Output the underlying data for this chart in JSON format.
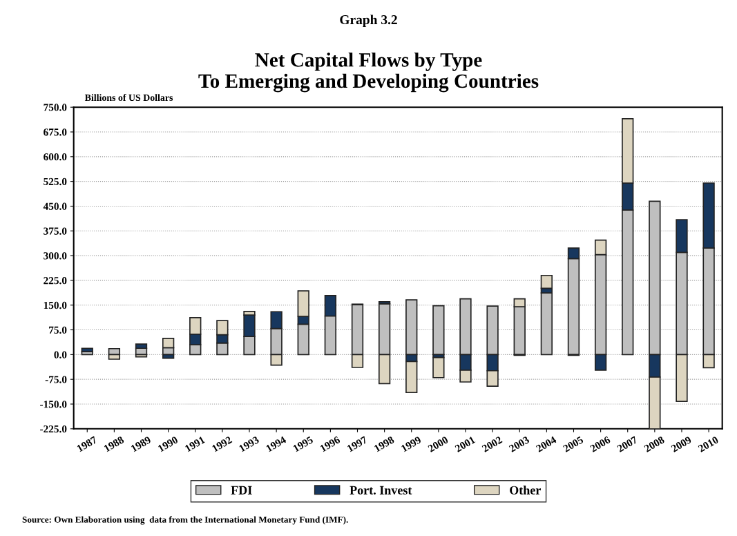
{
  "chart_data": {
    "type": "bar",
    "stacked": true,
    "title": "Graph 3.2",
    "subtitle": "Net Capital Flows by Type\nTo Emerging and Developing Countries",
    "ylabel": "Billions of US Dollars",
    "categories": [
      "1987",
      "1988",
      "1989",
      "1990",
      "1991",
      "1992",
      "1993",
      "1994",
      "1995",
      "1996",
      "1997",
      "1998",
      "1999",
      "2000",
      "2001",
      "2002",
      "2003",
      "2004",
      "2005",
      "2006",
      "2007",
      "2008",
      "2009",
      "2010"
    ],
    "series": [
      {
        "name": "FDI",
        "color": "#bfbfbf",
        "values": [
          9,
          18,
          19,
          21,
          30,
          35,
          55,
          79,
          92,
          117,
          151,
          154,
          166,
          148,
          169,
          147,
          145,
          187,
          291,
          303,
          438,
          465,
          310,
          323
        ]
      },
      {
        "name": "Port. Invest",
        "color": "#17375e",
        "values": [
          10,
          null,
          13,
          -11,
          32,
          25,
          65,
          51,
          24,
          62,
          2,
          6,
          -21,
          -9,
          -47,
          -49,
          -2,
          14,
          32,
          -47,
          82,
          -68,
          99,
          197
        ]
      },
      {
        "name": "Other",
        "color": "#ddd5c0",
        "values": [
          null,
          -14,
          -7,
          28,
          50,
          43,
          11,
          -32,
          77,
          null,
          -39,
          -88,
          -94,
          -61,
          -36,
          -47,
          24,
          39,
          -2,
          44,
          195,
          -157,
          -142,
          -40
        ]
      }
    ],
    "ylim": [
      -225,
      750
    ],
    "yticks": [
      {
        "value": -225,
        "label": "-225.0"
      },
      {
        "value": -150,
        "label": "-150.0"
      },
      {
        "value": -75,
        "label": "-75.0"
      },
      {
        "value": 0,
        "label": "0.0"
      },
      {
        "value": 75,
        "label": "75.0"
      },
      {
        "value": 150,
        "label": "150.0"
      },
      {
        "value": 225,
        "label": "225.0"
      },
      {
        "value": 300,
        "label": "300.0"
      },
      {
        "value": 375,
        "label": "375.0"
      },
      {
        "value": 450,
        "label": "450.0"
      },
      {
        "value": 525,
        "label": "525.0"
      },
      {
        "value": 600,
        "label": "600.0"
      },
      {
        "value": 675,
        "label": "675.0"
      },
      {
        "value": 750,
        "label": "750.0"
      }
    ],
    "grid": "y",
    "legend": "bottom",
    "annotations": [
      "Source: Own Elaboration using  data from the International Monetary Fund (IMF)."
    ]
  }
}
